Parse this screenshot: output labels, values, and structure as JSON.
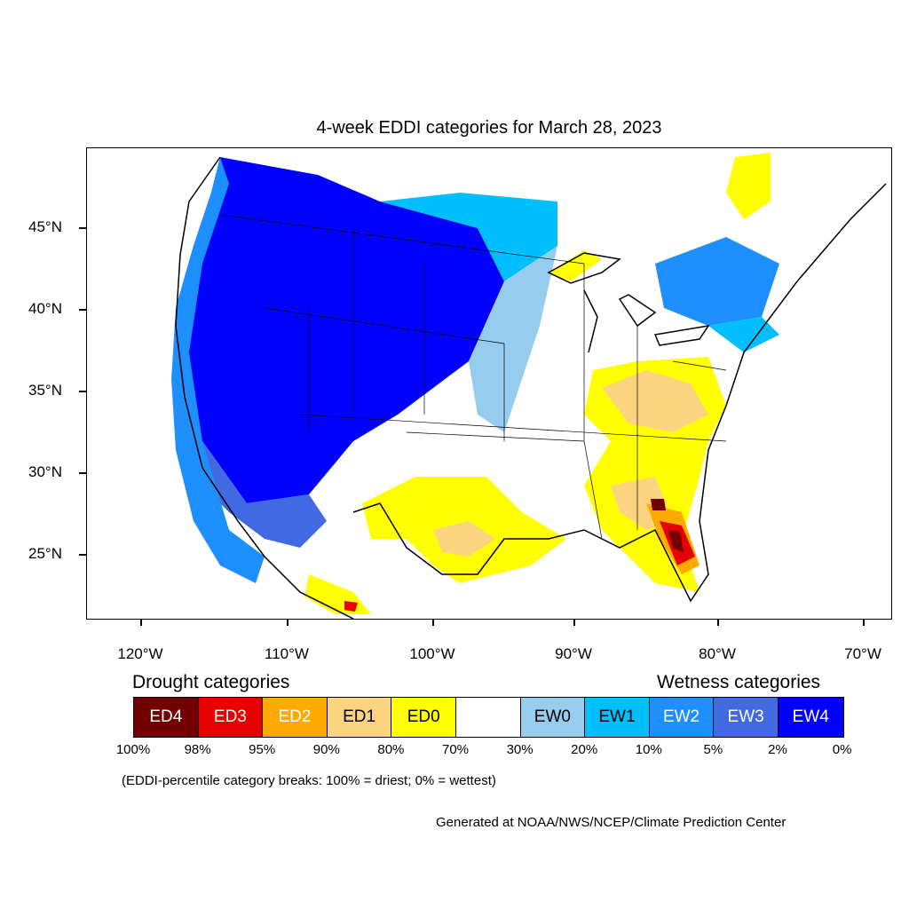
{
  "title": "4-week EDDI categories for March 28, 2023",
  "axes": {
    "lat_labels": [
      "45°N",
      "40°N",
      "35°N",
      "30°N",
      "25°N"
    ],
    "lon_labels": [
      "120°W",
      "110°W",
      "100°W",
      "90°W",
      "80°W",
      "70°W"
    ]
  },
  "legend": {
    "drought_heading": "Drought categories",
    "wetness_heading": "Wetness categories",
    "categories": [
      {
        "label": "ED4",
        "color": "#730000",
        "text_color": "#ffffff"
      },
      {
        "label": "ED3",
        "color": "#e60000",
        "text_color": "#ffffff"
      },
      {
        "label": "ED2",
        "color": "#ffaa00",
        "text_color": "#ffffff"
      },
      {
        "label": "ED1",
        "color": "#fcd37f",
        "text_color": "#000000"
      },
      {
        "label": "ED0",
        "color": "#ffff00",
        "text_color": "#000000"
      },
      {
        "label": "",
        "color": "#ffffff",
        "text_color": "#000000"
      },
      {
        "label": "EW0",
        "color": "#96cdef",
        "text_color": "#000000"
      },
      {
        "label": "EW1",
        "color": "#00bfff",
        "text_color": "#000000"
      },
      {
        "label": "EW2",
        "color": "#1e8fff",
        "text_color": "#ffffff"
      },
      {
        "label": "EW3",
        "color": "#4169e1",
        "text_color": "#ffffff"
      },
      {
        "label": "EW4",
        "color": "#0000ff",
        "text_color": "#ffffff"
      }
    ],
    "breaks": [
      "100%",
      "98%",
      "95%",
      "90%",
      "80%",
      "70%",
      "30%",
      "20%",
      "10%",
      "5%",
      "2%",
      "0%"
    ]
  },
  "note": "(EDDI-percentile category breaks: 100% = driest; 0% = wettest)",
  "credit": "Generated at NOAA/NWS/NCEP/Climate Prediction Center"
}
